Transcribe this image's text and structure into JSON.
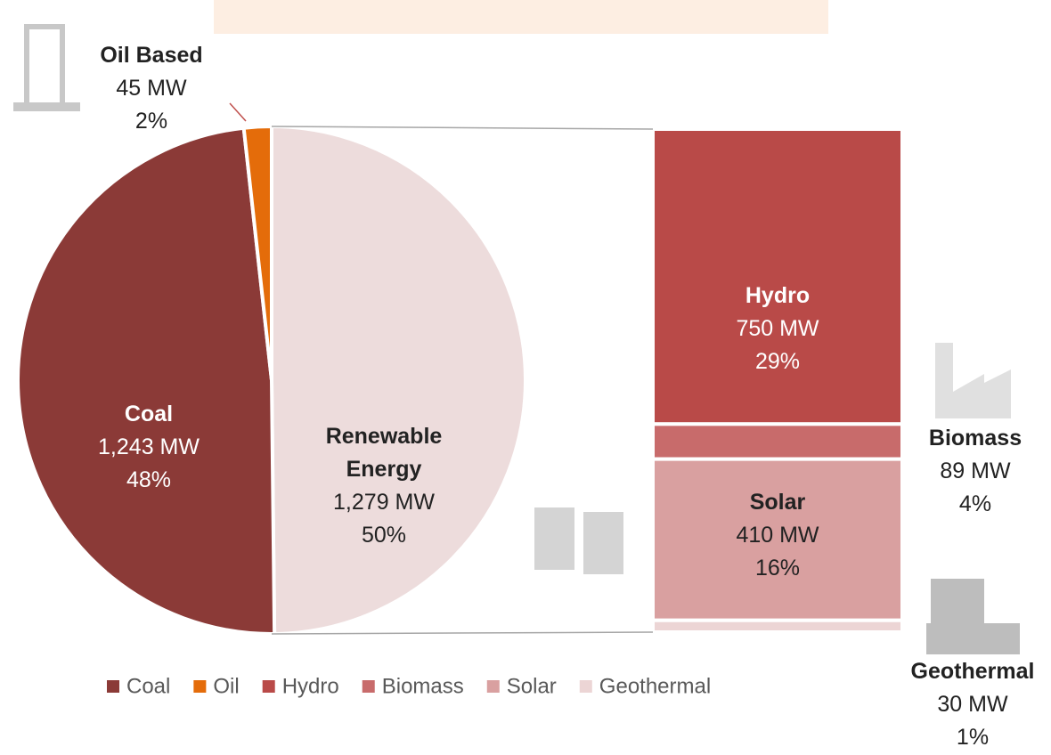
{
  "chart_data": {
    "type": "bar-of-pie",
    "pie": {
      "slices": [
        {
          "label": "Renewable Energy",
          "value": 1279,
          "value_label": "1,279 MW",
          "percent": 50,
          "percent_label": "50%",
          "color": "#eddcdc"
        },
        {
          "label": "Coal",
          "legend": "Coal",
          "value": 1243,
          "value_label": "1,243 MW",
          "percent": 48,
          "percent_label": "48%",
          "color": "#8b3a37"
        },
        {
          "label": "Oil Based",
          "legend": "Oil",
          "value": 45,
          "value_label": "45 MW",
          "percent": 2,
          "percent_label": "2%",
          "color": "#e46c0a"
        }
      ]
    },
    "bar": {
      "segments": [
        {
          "label": "Hydro",
          "legend": "Hydro",
          "value": 750,
          "value_label": "750 MW",
          "percent": 29,
          "percent_label": "29%",
          "color": "#b94a48"
        },
        {
          "label": "Biomass",
          "legend": "Biomass",
          "value": 89,
          "value_label": "89 MW",
          "percent": 4,
          "percent_label": "4%",
          "color": "#c86b6b"
        },
        {
          "label": "Solar",
          "legend": "Solar",
          "value": 410,
          "value_label": "410 MW",
          "percent": 16,
          "percent_label": "16%",
          "color": "#d9a0a0"
        },
        {
          "label": "Geothermal",
          "legend": "Geothermal",
          "value": 30,
          "value_label": "30 MW",
          "percent": 1,
          "percent_label": "1%",
          "color": "#ecd5d5"
        }
      ]
    }
  }
}
